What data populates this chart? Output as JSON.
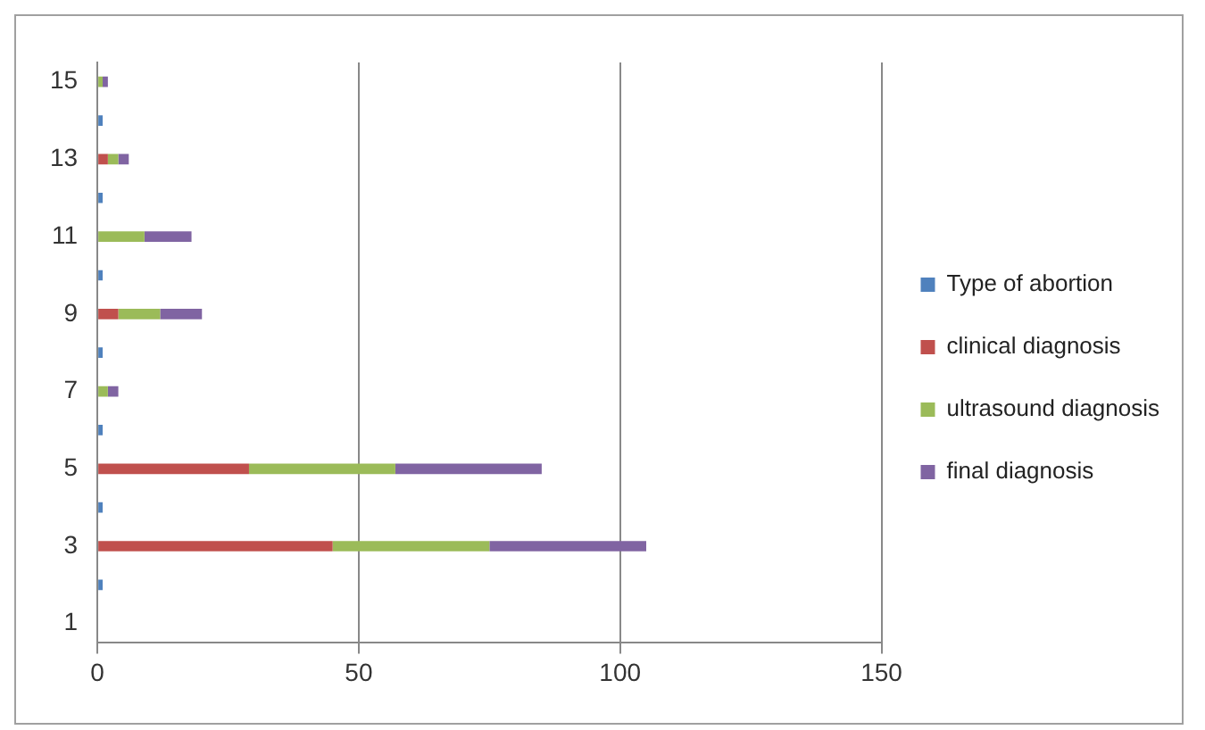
{
  "chart_data": {
    "type": "bar",
    "orientation": "horizontal",
    "stacked": true,
    "categories": [
      "15",
      null,
      "13",
      null,
      "11",
      null,
      "9",
      null,
      "7",
      null,
      "5",
      null,
      "3",
      null,
      "1"
    ],
    "series": [
      {
        "name": "Type of abortion",
        "color": "#4f81bd",
        "values": [
          null,
          1,
          null,
          1,
          null,
          1,
          null,
          1,
          null,
          1,
          null,
          1,
          null,
          1,
          null
        ]
      },
      {
        "name": "clinical diagnosis",
        "color": "#c0504d",
        "values": [
          null,
          null,
          2,
          null,
          null,
          null,
          4,
          null,
          null,
          null,
          29,
          null,
          45,
          null,
          null
        ]
      },
      {
        "name": "ultrasound diagnosis",
        "color": "#9bbb59",
        "values": [
          1,
          null,
          2,
          null,
          9,
          null,
          8,
          null,
          2,
          null,
          28,
          null,
          30,
          null,
          null
        ]
      },
      {
        "name": "final diagnosis",
        "color": "#8064a2",
        "values": [
          1,
          null,
          2,
          null,
          9,
          null,
          8,
          null,
          2,
          null,
          28,
          null,
          30,
          null,
          null
        ]
      }
    ],
    "xlim": [
      0,
      150
    ],
    "xticks": [
      0,
      50,
      100,
      150
    ],
    "grid": "x",
    "legend": "right"
  }
}
